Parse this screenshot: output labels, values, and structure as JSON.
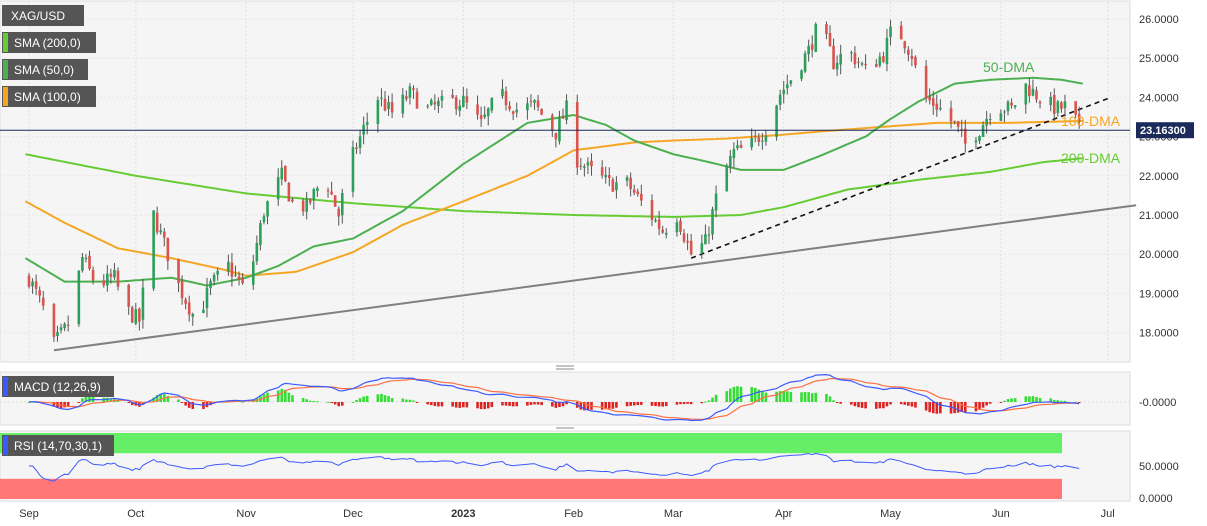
{
  "chart_data": {
    "type": "candlestick",
    "symbol": "XAG/USD",
    "indicators": [
      {
        "label": "SMA (200,0)",
        "color": "#66cc33"
      },
      {
        "label": "SMA (50,0)",
        "color": "#4caf50"
      },
      {
        "label": "SMA (100,0)",
        "color": "#f5a623"
      }
    ],
    "current_price": 23.163,
    "current_price_label": "23.16300",
    "y_ticks": [
      "26.0000",
      "25.0000",
      "24.0000",
      "23.0000",
      "22.0000",
      "21.0000",
      "20.0000",
      "19.0000",
      "18.0000"
    ],
    "y_tick_values": [
      26,
      25,
      24,
      23,
      22,
      21,
      20,
      19,
      18
    ],
    "ylim": [
      17.25,
      26.3
    ],
    "x_ticks": [
      "Sep",
      "Oct",
      "Nov",
      "Dec",
      "2023",
      "Feb",
      "Mar",
      "Apr",
      "May",
      "Jun",
      "Jul"
    ],
    "x_tick_days": [
      0,
      30,
      61,
      91,
      122,
      153,
      181,
      212,
      242,
      273,
      303
    ],
    "annotations": [
      {
        "text": "50-DMA",
        "color": "#4caf50"
      },
      {
        "text": "100-DMA",
        "color": "#f5a623"
      },
      {
        "text": "200-DMA",
        "color": "#66cc33"
      }
    ],
    "price_anchors": [
      [
        0,
        19.4
      ],
      [
        4,
        18.6
      ],
      [
        7,
        17.7
      ],
      [
        11,
        18.2
      ],
      [
        15,
        19.9
      ],
      [
        19,
        19.2
      ],
      [
        24,
        19.4
      ],
      [
        27,
        18.6
      ],
      [
        31,
        18.3
      ],
      [
        35,
        21.0
      ],
      [
        39,
        20.0
      ],
      [
        42,
        19.2
      ],
      [
        47,
        18.3
      ],
      [
        51,
        19.2
      ],
      [
        56,
        19.7
      ],
      [
        61,
        19.0
      ],
      [
        66,
        21.1
      ],
      [
        71,
        22.0
      ],
      [
        74,
        21.3
      ],
      [
        78,
        21.2
      ],
      [
        83,
        22.0
      ],
      [
        87,
        21.0
      ],
      [
        90,
        22.3
      ],
      [
        94,
        23.2
      ],
      [
        98,
        24.0
      ],
      [
        102,
        23.6
      ],
      [
        107,
        24.1
      ],
      [
        112,
        23.7
      ],
      [
        118,
        23.9
      ],
      [
        122,
        23.9
      ],
      [
        127,
        23.3
      ],
      [
        132,
        24.1
      ],
      [
        137,
        23.7
      ],
      [
        142,
        23.8
      ],
      [
        148,
        23.1
      ],
      [
        152,
        23.9
      ],
      [
        153,
        22.5
      ],
      [
        158,
        22.1
      ],
      [
        163,
        21.8
      ],
      [
        168,
        21.8
      ],
      [
        173,
        21.2
      ],
      [
        178,
        20.6
      ],
      [
        182,
        21.0
      ],
      [
        186,
        20.0
      ],
      [
        190,
        20.3
      ],
      [
        194,
        21.8
      ],
      [
        198,
        22.6
      ],
      [
        202,
        22.7
      ],
      [
        207,
        23.2
      ],
      [
        211,
        24.1
      ],
      [
        215,
        24.6
      ],
      [
        219,
        25.2
      ],
      [
        222,
        25.9
      ],
      [
        226,
        24.9
      ],
      [
        230,
        25.2
      ],
      [
        235,
        24.7
      ],
      [
        240,
        25.1
      ],
      [
        243,
        25.9
      ],
      [
        248,
        25.1
      ],
      [
        251,
        24.0
      ],
      [
        255,
        23.8
      ],
      [
        260,
        23.3
      ],
      [
        263,
        22.8
      ],
      [
        267,
        23.2
      ],
      [
        271,
        23.8
      ],
      [
        276,
        23.7
      ],
      [
        280,
        24.3
      ],
      [
        285,
        23.9
      ],
      [
        289,
        23.7
      ],
      [
        292,
        23.8
      ],
      [
        295,
        23.2
      ]
    ],
    "sma200_anchors": [
      [
        -1,
        22.55
      ],
      [
        30,
        22.0
      ],
      [
        61,
        21.55
      ],
      [
        91,
        21.3
      ],
      [
        122,
        21.1
      ],
      [
        153,
        21.0
      ],
      [
        181,
        20.95
      ],
      [
        200,
        21.0
      ],
      [
        212,
        21.2
      ],
      [
        230,
        21.65
      ],
      [
        250,
        21.9
      ],
      [
        270,
        22.1
      ],
      [
        285,
        22.35
      ],
      [
        296,
        22.45
      ]
    ],
    "sma100_anchors": [
      [
        -1,
        21.35
      ],
      [
        10,
        20.8
      ],
      [
        25,
        20.15
      ],
      [
        40,
        19.9
      ],
      [
        55,
        19.6
      ],
      [
        61,
        19.45
      ],
      [
        75,
        19.55
      ],
      [
        91,
        20.05
      ],
      [
        105,
        20.75
      ],
      [
        122,
        21.35
      ],
      [
        140,
        22.0
      ],
      [
        153,
        22.65
      ],
      [
        170,
        22.85
      ],
      [
        181,
        22.9
      ],
      [
        196,
        22.95
      ],
      [
        212,
        23.05
      ],
      [
        225,
        23.15
      ],
      [
        240,
        23.25
      ],
      [
        255,
        23.35
      ],
      [
        275,
        23.35
      ],
      [
        296,
        23.4
      ]
    ],
    "sma50_anchors": [
      [
        -1,
        19.9
      ],
      [
        10,
        19.3
      ],
      [
        25,
        19.3
      ],
      [
        40,
        19.4
      ],
      [
        50,
        19.2
      ],
      [
        61,
        19.4
      ],
      [
        70,
        19.7
      ],
      [
        80,
        20.2
      ],
      [
        91,
        20.4
      ],
      [
        105,
        21.1
      ],
      [
        122,
        22.3
      ],
      [
        140,
        23.35
      ],
      [
        153,
        23.55
      ],
      [
        162,
        23.3
      ],
      [
        170,
        22.9
      ],
      [
        181,
        22.55
      ],
      [
        191,
        22.35
      ],
      [
        200,
        22.15
      ],
      [
        212,
        22.15
      ],
      [
        222,
        22.5
      ],
      [
        235,
        23.0
      ],
      [
        242,
        23.45
      ],
      [
        250,
        23.9
      ],
      [
        260,
        24.35
      ],
      [
        270,
        24.45
      ],
      [
        282,
        24.5
      ],
      [
        290,
        24.45
      ],
      [
        296,
        24.35
      ]
    ],
    "support_line": {
      "from": [
        7,
        17.55
      ],
      "to": [
        311,
        21.25
      ]
    },
    "dashed_trend_line": {
      "from": [
        186,
        19.9
      ],
      "to": [
        303,
        23.97
      ]
    },
    "macd": {
      "label": "MACD (12,26,9)",
      "zero_label": "-0.0000",
      "macd_color": "#3d5afe",
      "signal_color": "#ff7043",
      "hist_pos_color": "#33dd33",
      "hist_neg_color": "#dd2222"
    },
    "rsi": {
      "label": "RSI (14,70,30,1)",
      "ticks": [
        "50.0000",
        "0.0000"
      ],
      "tick_values": [
        50,
        0
      ],
      "overbought": 70,
      "oversold": 30,
      "line_color": "#3d5afe",
      "overbought_color": "#66ee66",
      "oversold_color": "#ff7777"
    }
  }
}
